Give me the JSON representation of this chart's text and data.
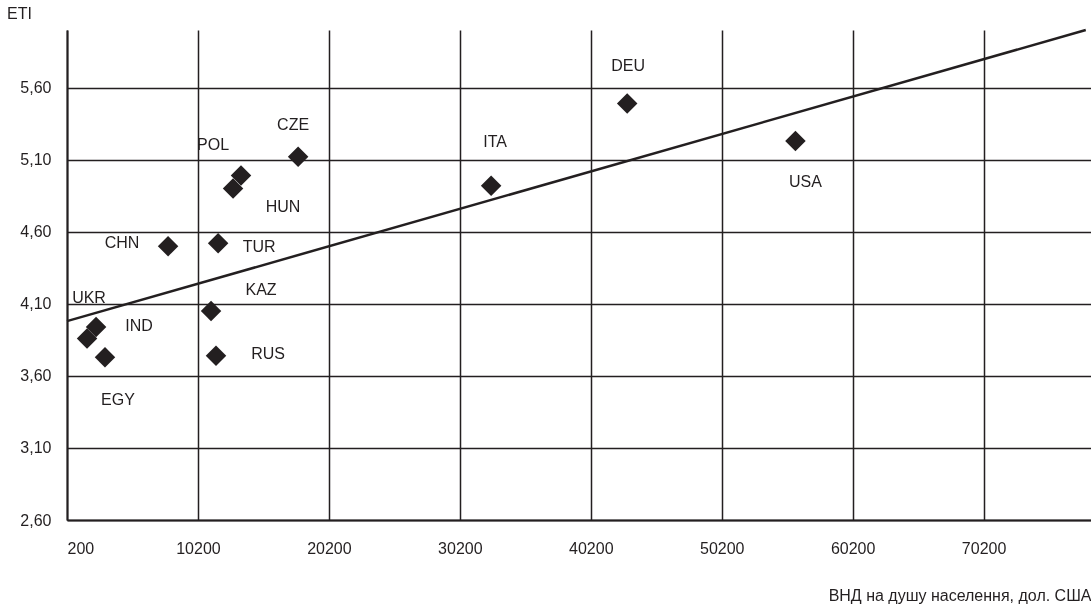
{
  "chart_data": {
    "type": "scatter",
    "xlabel": "ВНД на душу населення, дол. США",
    "ylabel": "ETI",
    "xlim": [
      200,
      78400
    ],
    "ylim": [
      2.6,
      6.0
    ],
    "xticks": [
      200,
      10200,
      20200,
      30200,
      40200,
      50200,
      60200,
      70200
    ],
    "yticks": [
      {
        "value": 2.6,
        "label": "2,60"
      },
      {
        "value": 3.1,
        "label": "3,10"
      },
      {
        "value": 3.6,
        "label": "3,60"
      },
      {
        "value": 4.1,
        "label": "4,10"
      },
      {
        "value": 4.6,
        "label": "4,60"
      },
      {
        "value": 5.1,
        "label": "5,10"
      },
      {
        "value": 5.6,
        "label": "5,60"
      }
    ],
    "grid": true,
    "series": [
      {
        "marker": "diamond",
        "color": "#231f20",
        "x": [
          17850,
          13490,
          12880,
          7920,
          11740,
          11200,
          11580,
          2420,
          1730,
          3100,
          32590,
          42980,
          55830
        ],
        "values": [
          5.12,
          4.99,
          4.9,
          4.5,
          4.52,
          4.05,
          3.74,
          3.94,
          3.86,
          3.73,
          4.92,
          5.49,
          5.23
        ]
      },
      {
        "type": "line",
        "color": "#231f20",
        "x": [
          200,
          78000
        ],
        "values": [
          3.98,
          6.0
        ]
      }
    ],
    "annotations": [
      {
        "text": "CZE",
        "x": 17850,
        "y": 5.12
      },
      {
        "text": "POL",
        "x": 13490,
        "y": 4.99
      },
      {
        "text": "HUN",
        "x": 12880,
        "y": 4.9
      },
      {
        "text": "CHN",
        "x": 7920,
        "y": 4.5
      },
      {
        "text": "TUR",
        "x": 11740,
        "y": 4.52
      },
      {
        "text": "KAZ",
        "x": 11200,
        "y": 4.05
      },
      {
        "text": "RUS",
        "x": 11580,
        "y": 3.74
      },
      {
        "text": "IND",
        "x": 2420,
        "y": 3.94
      },
      {
        "text": "UKR",
        "x": 1730,
        "y": 3.86
      },
      {
        "text": "EGY",
        "x": 3100,
        "y": 3.73
      },
      {
        "text": "ITA",
        "x": 32590,
        "y": 4.92
      },
      {
        "text": "DEU",
        "x": 42980,
        "y": 5.49
      },
      {
        "text": "USA",
        "x": 55830,
        "y": 5.23
      }
    ]
  }
}
